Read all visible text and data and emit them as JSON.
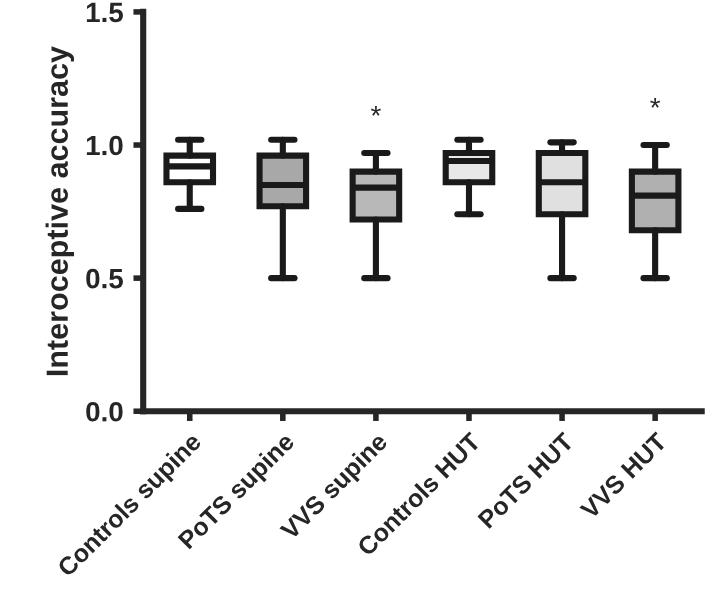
{
  "chart_data": {
    "type": "box",
    "ylabel": "Interoceptive accuracy",
    "categories": [
      "Controls supine",
      "PoTS supine",
      "VVS supine",
      "Controls HUT",
      "PoTS HUT",
      "VVS HUT"
    ],
    "colors": [
      "#ffffff",
      "#a8a8a8",
      "#b8b8b8",
      "#e8e8e8",
      "#e0e0e0",
      "#b0b0b0"
    ],
    "boxes": [
      {
        "low": 0.76,
        "q1": 0.86,
        "median": 0.92,
        "q3": 0.96,
        "high": 1.02
      },
      {
        "low": 0.5,
        "q1": 0.77,
        "median": 0.85,
        "q3": 0.96,
        "high": 1.02
      },
      {
        "low": 0.5,
        "q1": 0.72,
        "median": 0.84,
        "q3": 0.9,
        "high": 0.97
      },
      {
        "low": 0.74,
        "q1": 0.86,
        "median": 0.94,
        "q3": 0.97,
        "high": 1.02
      },
      {
        "low": 0.5,
        "q1": 0.74,
        "median": 0.86,
        "q3": 0.97,
        "high": 1.01
      },
      {
        "low": 0.5,
        "q1": 0.68,
        "median": 0.81,
        "q3": 0.9,
        "high": 1.0
      }
    ],
    "ylim": [
      0,
      1.5
    ],
    "yticks": [
      {
        "value": 0,
        "label": "0.0"
      },
      {
        "value": 0.5,
        "label": "0.5"
      },
      {
        "value": 1.0,
        "label": "1.0"
      },
      {
        "value": 1.5,
        "label": "1.5"
      }
    ],
    "annotations": [
      "*",
      "*"
    ]
  }
}
